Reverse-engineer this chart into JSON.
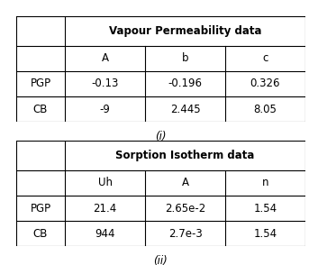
{
  "table1": {
    "title": "Vapour Permeability data",
    "col_headers": [
      "",
      "A",
      "b",
      "c"
    ],
    "rows": [
      [
        "PGP",
        "-0.13",
        "-0.196",
        "0.326"
      ],
      [
        "CB",
        "-9",
        "2.445",
        "8.05"
      ]
    ],
    "caption": "(i)"
  },
  "table2": {
    "title": "Sorption Isotherm data",
    "col_headers": [
      "",
      "Uh",
      "A",
      "n"
    ],
    "rows": [
      [
        "PGP",
        "21.4",
        "2.65e-2",
        "1.54"
      ],
      [
        "CB",
        "944",
        "2.7e-3",
        "1.54"
      ]
    ],
    "caption": "(ii)"
  },
  "bg_color": "#ffffff",
  "text_color": "#000000",
  "line_color": "#000000",
  "title_fontsize": 8.5,
  "cell_fontsize": 8.5,
  "caption_fontsize": 8.5,
  "fig_width": 3.53,
  "fig_height": 2.94
}
